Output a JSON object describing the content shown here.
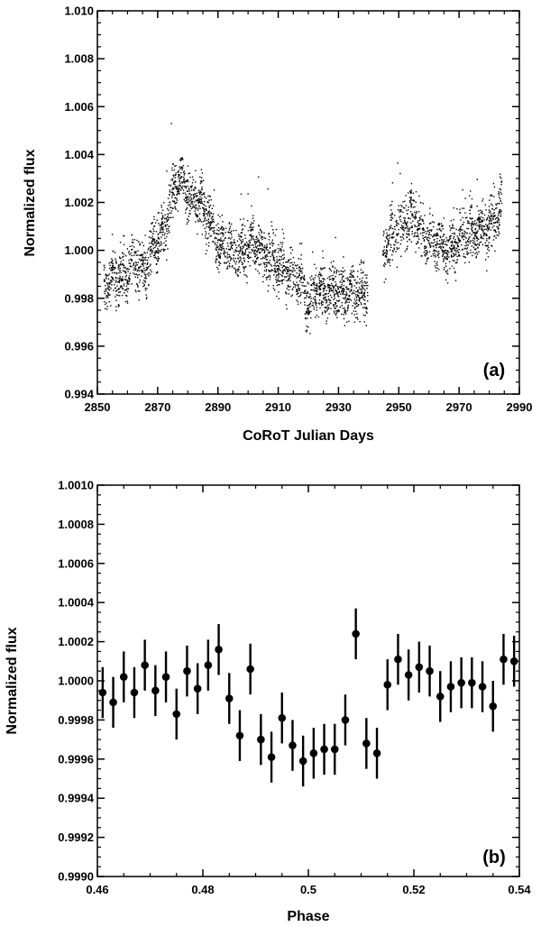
{
  "chart_data": [
    {
      "type": "scatter",
      "panel": "a",
      "panel_label": "(a)",
      "xlabel": "CoRoT Julian Days",
      "ylabel": "Normalized flux",
      "xlim": [
        2850,
        2990
      ],
      "ylim": [
        0.994,
        1.01
      ],
      "xticks": [
        2850,
        2870,
        2890,
        2910,
        2930,
        2950,
        2970,
        2990
      ],
      "xtick_labels": [
        "2850",
        "2870",
        "2890",
        "2910",
        "2930",
        "2950",
        "2970",
        "2990"
      ],
      "yticks": [
        0.994,
        0.996,
        0.998,
        1.0,
        1.002,
        1.004,
        1.006,
        1.008,
        1.01
      ],
      "ytick_labels": [
        "0.994",
        "0.996",
        "0.998",
        "1.000",
        "1.002",
        "1.004",
        "1.006",
        "1.008",
        "1.010"
      ],
      "marker_color": "#000000",
      "gap": [
        2939.5,
        2944.5
      ],
      "trend": {
        "x": [
          2852,
          2856,
          2858,
          2862,
          2866,
          2868,
          2872,
          2876,
          2878,
          2880,
          2884,
          2888,
          2890,
          2894,
          2898,
          2902,
          2906,
          2910,
          2914,
          2918,
          2920,
          2922,
          2926,
          2930,
          2934,
          2939,
          2945,
          2950,
          2955,
          2958,
          2962,
          2966,
          2970,
          2975,
          2980,
          2984
        ],
        "y": [
          0.9985,
          0.9992,
          0.9988,
          0.9996,
          0.9993,
          1.0002,
          1.0008,
          1.0028,
          1.003,
          1.0024,
          1.002,
          1.0012,
          1.0003,
          1.0001,
          0.9999,
          1.0004,
          0.9998,
          0.9993,
          0.999,
          0.9987,
          0.9975,
          0.9985,
          0.9983,
          0.9982,
          0.9982,
          0.9983,
          1.0002,
          1.001,
          1.0015,
          1.0007,
          1.0004,
          0.9998,
          1.0004,
          1.0008,
          1.001,
          1.0018
        ]
      }
    },
    {
      "type": "scatter",
      "panel": "b",
      "panel_label": "(b)",
      "xlabel": "Phase",
      "ylabel": "Normalized flux",
      "xlim": [
        0.46,
        0.54
      ],
      "ylim": [
        0.999,
        1.001
      ],
      "xticks": [
        0.46,
        0.48,
        0.5,
        0.52,
        0.54
      ],
      "xtick_labels": [
        "0.46",
        "0.48",
        "0.5",
        "0.52",
        "0.54"
      ],
      "yticks": [
        0.999,
        0.9992,
        0.9994,
        0.9996,
        0.9998,
        1.0,
        1.0002,
        1.0004,
        1.0006,
        1.0008,
        1.001
      ],
      "ytick_labels": [
        "0.9990",
        "0.9992",
        "0.9994",
        "0.9996",
        "0.9998",
        "1.0000",
        "1.0002",
        "1.0004",
        "1.0006",
        "1.0008",
        "1.0010"
      ],
      "marker_color": "#000000",
      "error": 0.00013,
      "x": [
        0.461,
        0.463,
        0.465,
        0.467,
        0.469,
        0.471,
        0.473,
        0.475,
        0.477,
        0.479,
        0.481,
        0.483,
        0.485,
        0.487,
        0.489,
        0.491,
        0.493,
        0.495,
        0.497,
        0.499,
        0.501,
        0.503,
        0.505,
        0.507,
        0.509,
        0.511,
        0.513,
        0.515,
        0.517,
        0.519,
        0.521,
        0.523,
        0.525,
        0.527,
        0.529,
        0.531,
        0.533,
        0.535,
        0.537,
        0.539
      ],
      "y": [
        0.99994,
        0.99989,
        1.00002,
        0.99994,
        1.00008,
        0.99995,
        1.00002,
        0.99983,
        1.00005,
        0.99996,
        1.00008,
        1.00016,
        0.99991,
        0.99972,
        1.00006,
        0.9997,
        0.99961,
        0.99981,
        0.99967,
        0.99959,
        0.99963,
        0.99965,
        0.99965,
        0.9998,
        1.00024,
        0.99968,
        0.99963,
        0.99998,
        1.00011,
        1.00003,
        1.00007,
        1.00005,
        0.99992,
        0.99997,
        0.99999,
        0.99999,
        0.99997,
        0.99987,
        1.00011,
        1.0001
      ]
    }
  ]
}
